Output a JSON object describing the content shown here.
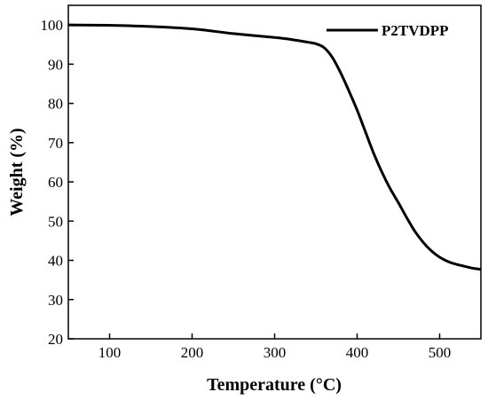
{
  "chart_data": {
    "type": "line",
    "title": "",
    "xlabel": "Temperature (°C)",
    "ylabel": "Weight (%)",
    "xlim": [
      50,
      550
    ],
    "ylim": [
      20,
      105
    ],
    "x_ticks": [
      100,
      200,
      300,
      400,
      500
    ],
    "y_ticks": [
      20,
      30,
      40,
      50,
      60,
      70,
      80,
      90,
      100
    ],
    "grid": false,
    "legend_position": "top-right",
    "series": [
      {
        "name": "P2TVDPP",
        "color": "#000000",
        "x": [
          50,
          100,
          150,
          200,
          250,
          300,
          320,
          340,
          350,
          360,
          370,
          380,
          390,
          400,
          410,
          420,
          430,
          440,
          450,
          460,
          470,
          480,
          490,
          500,
          510,
          520,
          530,
          540,
          550
        ],
        "y": [
          100.0,
          99.9,
          99.6,
          99.0,
          97.8,
          96.8,
          96.3,
          95.6,
          95.2,
          94.2,
          91.7,
          87.8,
          83.2,
          78.3,
          72.8,
          67.3,
          62.5,
          58.3,
          54.7,
          50.9,
          47.4,
          44.6,
          42.4,
          40.8,
          39.7,
          39.0,
          38.5,
          38.0,
          37.7
        ]
      }
    ]
  }
}
